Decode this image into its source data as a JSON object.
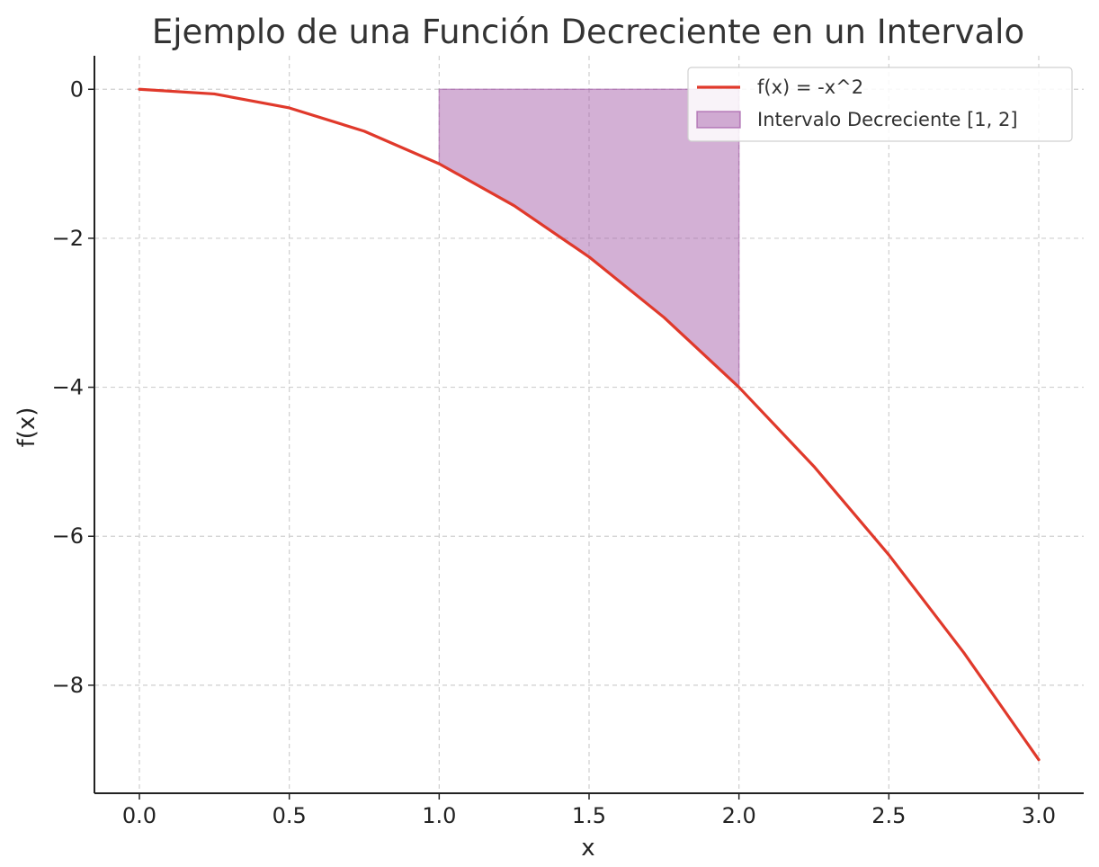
{
  "chart_data": {
    "type": "line",
    "title": "Ejemplo de una Función Decreciente en un Intervalo",
    "xlabel": "x",
    "ylabel": "f(x)",
    "xlim": [
      -0.15,
      3.15
    ],
    "ylim": [
      -9.45,
      0.45
    ],
    "x_ticks": [
      0.0,
      0.5,
      1.0,
      1.5,
      2.0,
      2.5,
      3.0
    ],
    "x_tick_labels": [
      "0.0",
      "0.5",
      "1.0",
      "1.5",
      "2.0",
      "2.5",
      "3.0"
    ],
    "y_ticks": [
      0,
      -2,
      -4,
      -6,
      -8
    ],
    "y_tick_labels": [
      "0",
      "−2",
      "−4",
      "−6",
      "−8"
    ],
    "grid": true,
    "legend_position": "top-right",
    "series": [
      {
        "name": "f(x) = -x^2",
        "kind": "line",
        "color": "#e0392b",
        "x": [
          0.0,
          0.25,
          0.5,
          0.75,
          1.0,
          1.25,
          1.5,
          1.75,
          2.0,
          2.25,
          2.5,
          2.75,
          3.0
        ],
        "y": [
          0.0,
          -0.0625,
          -0.25,
          -0.5625,
          -1.0,
          -1.5625,
          -2.25,
          -3.0625,
          -4.0,
          -5.0625,
          -6.25,
          -7.5625,
          -9.0
        ]
      },
      {
        "name": "Intervalo Decreciente [1, 2]",
        "kind": "fill_between",
        "color": "#a45aa8",
        "x": [
          1.0,
          1.25,
          1.5,
          1.75,
          2.0
        ],
        "y_top": [
          0,
          0,
          0,
          0,
          0
        ],
        "y_bottom": [
          -1.0,
          -1.5625,
          -2.25,
          -3.0625,
          -4.0
        ]
      }
    ]
  }
}
